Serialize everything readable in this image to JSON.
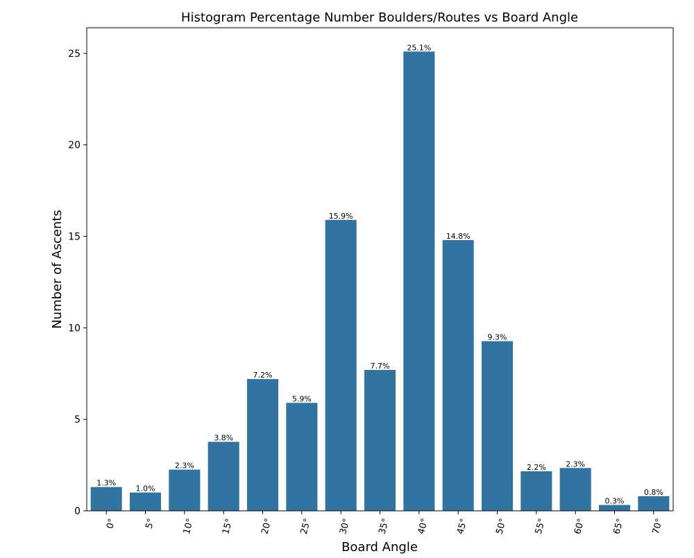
{
  "chart_data": {
    "type": "bar",
    "title": "Histogram Percentage Number Boulders/Routes vs Board Angle",
    "xlabel": "Board Angle",
    "ylabel": "Number of Ascents",
    "categories": [
      "0°",
      "5°",
      "10°",
      "15°",
      "20°",
      "25°",
      "30°",
      "35°",
      "40°",
      "45°",
      "50°",
      "55°",
      "60°",
      "65°",
      "70°"
    ],
    "values": [
      1.3,
      1.0,
      2.25,
      3.77,
      7.2,
      5.9,
      15.9,
      7.7,
      25.1,
      14.8,
      9.27,
      2.16,
      2.34,
      0.32,
      0.8
    ],
    "data_labels": [
      "1.3%",
      "1.0%",
      "2.3%",
      "3.8%",
      "7.2%",
      "5.9%",
      "15.9%",
      "7.7%",
      "25.1%",
      "14.8%",
      "9.3%",
      "2.2%",
      "2.3%",
      "0.3%",
      "0.8%"
    ],
    "ylim": [
      0,
      26.4
    ],
    "yticks": [
      0,
      5,
      10,
      15,
      20,
      25
    ],
    "ytick_labels": [
      "0",
      "5",
      "10",
      "15",
      "20",
      "25"
    ],
    "grid": false,
    "legend": "none",
    "bar_color": "#3274a1",
    "x_tick_rotation": "rotated"
  }
}
